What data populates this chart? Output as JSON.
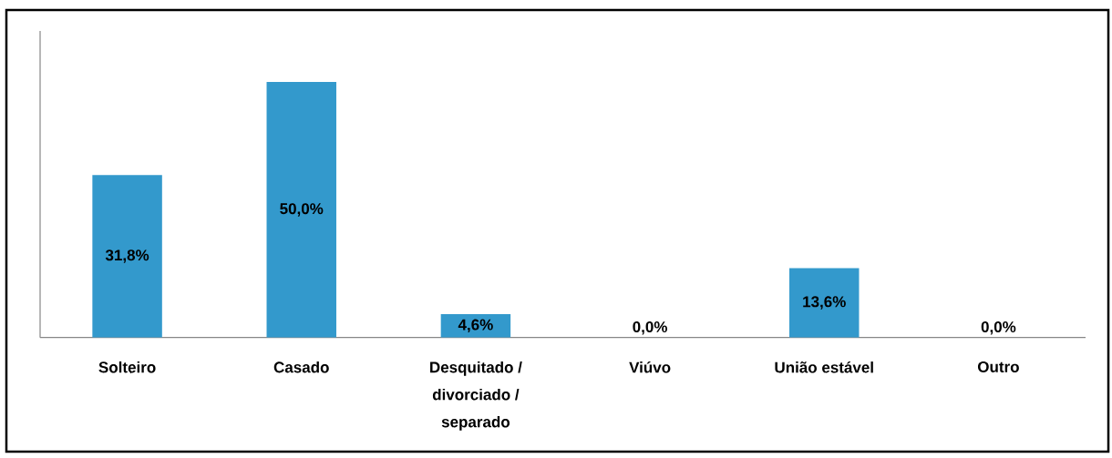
{
  "chart_data": {
    "type": "bar",
    "categories": [
      "Solteiro",
      "Casado",
      "Desquitado / divorciado / separado",
      "Viúvo",
      "União estável",
      "Outro"
    ],
    "values": [
      31.8,
      50.0,
      4.6,
      0.0,
      13.6,
      0.0
    ],
    "color": "#3399cc",
    "ylim": [
      0,
      60
    ],
    "value_labels": [
      "31,8%",
      "50,0%",
      "4,6%",
      "0,0%",
      "13,6%",
      "0,0%"
    ],
    "tick_labels": "x"
  }
}
